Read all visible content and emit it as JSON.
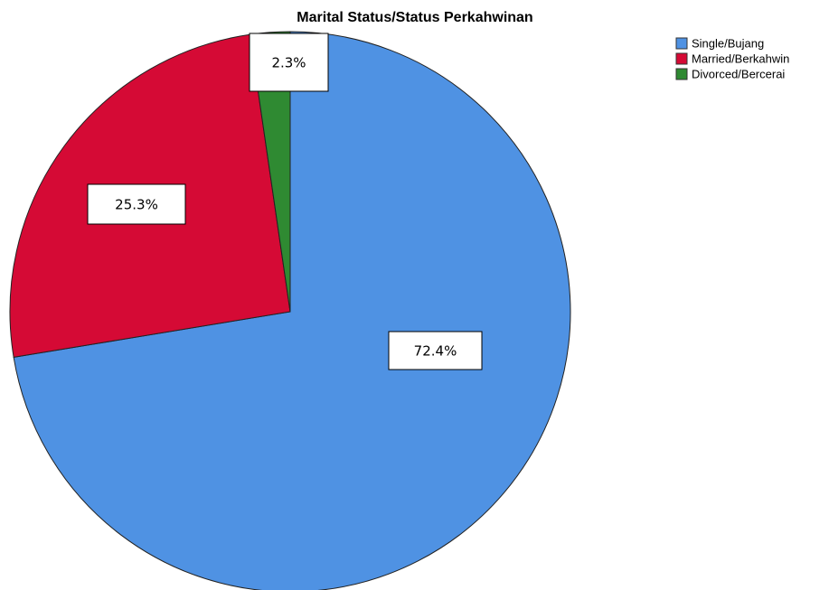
{
  "chart_data": {
    "type": "pie",
    "title": "Marital Status/Status Perkahwinan",
    "categories": [
      "Single/Bujang",
      "Married/Berkahwin",
      "Divorced/Bercerai"
    ],
    "values": [
      72.4,
      25.3,
      2.3
    ],
    "value_labels": [
      "72.4%",
      "25.3%",
      "2.3%"
    ],
    "colors": [
      "#4f92e3",
      "#d50a35",
      "#2f8a32"
    ],
    "legend": "top-right"
  }
}
